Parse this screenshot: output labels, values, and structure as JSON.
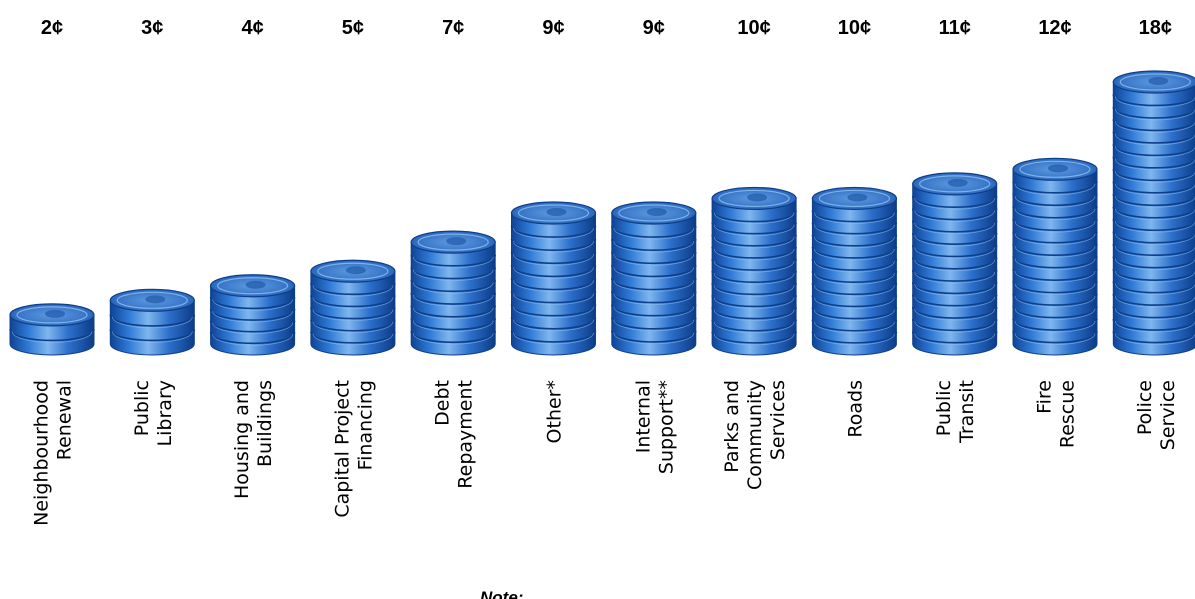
{
  "chart_data": {
    "type": "bar",
    "style": "stacked coins",
    "categories": [
      [
        "Neighbourhood",
        "Renewal"
      ],
      [
        "Public",
        "Library"
      ],
      [
        "Housing and",
        "Buildings"
      ],
      [
        "Capital Project",
        "Financing"
      ],
      [
        "Debt",
        "Repayment"
      ],
      [
        "Other*"
      ],
      [
        "Internal",
        "Support**"
      ],
      [
        "Parks and",
        "Community",
        "Services"
      ],
      [
        "Roads"
      ],
      [
        "Public",
        "Transit"
      ],
      [
        "Fire",
        "Rescue"
      ],
      [
        "Police",
        "Service"
      ]
    ],
    "values": [
      2,
      3,
      4,
      5,
      7,
      9,
      9,
      10,
      10,
      11,
      12,
      18
    ],
    "value_labels": [
      "2¢",
      "3¢",
      "4¢",
      "5¢",
      "7¢",
      "9¢",
      "9¢",
      "10¢",
      "10¢",
      "11¢",
      "12¢",
      "18¢"
    ],
    "unit": "¢",
    "colors": {
      "coin_face": "#3f7fd0",
      "coin_side": "#1d5fb8",
      "coin_edge": "#0d3f8a",
      "coin_highlight": "#8fc0f0"
    }
  },
  "footnote_heading": "Note:"
}
